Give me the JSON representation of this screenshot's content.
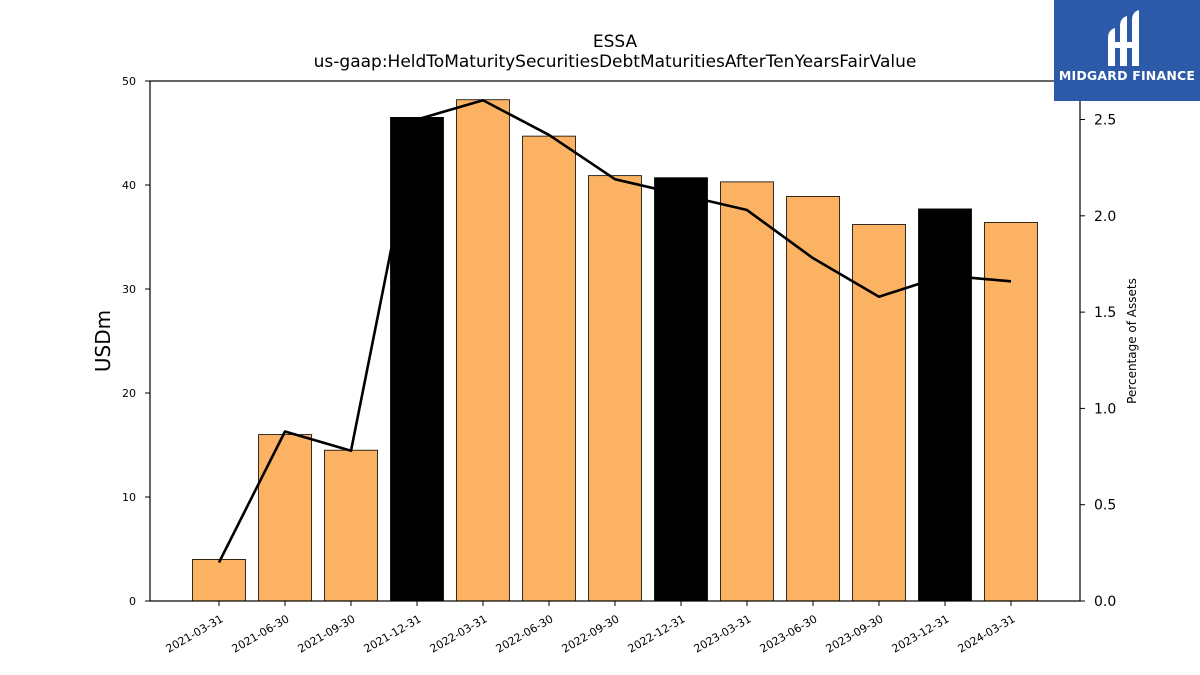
{
  "chart_data": {
    "type": "bar",
    "title": "ESSA",
    "subtitle": "us-gaap:HeldToMaturitySecuritiesDebtMaturitiesAfterTenYearsFairValue",
    "ylabel": "USDm",
    "y2label": "Percentage of Assets",
    "categories": [
      "2021-03-31",
      "2021-06-30",
      "2021-09-30",
      "2021-12-31",
      "2022-03-31",
      "2022-06-30",
      "2022-09-30",
      "2022-12-31",
      "2023-03-31",
      "2023-06-30",
      "2023-09-30",
      "2023-12-31",
      "2024-03-31"
    ],
    "series": [
      {
        "type": "bar",
        "axis": "left",
        "values": [
          4.0,
          16.0,
          14.5,
          46.5,
          48.2,
          44.7,
          40.9,
          40.7,
          40.3,
          38.9,
          36.2,
          37.7,
          36.4
        ],
        "colors": [
          "#fbb262",
          "#fbb262",
          "#fbb262",
          "#000000",
          "#fbb262",
          "#fbb262",
          "#fbb262",
          "#000000",
          "#fbb262",
          "#fbb262",
          "#fbb262",
          "#000000",
          "#fbb262"
        ]
      },
      {
        "type": "line",
        "axis": "right",
        "color": "#000000",
        "values": [
          0.2,
          0.88,
          0.78,
          2.5,
          2.6,
          2.42,
          2.19,
          2.11,
          2.03,
          1.78,
          1.58,
          1.69,
          1.66
        ]
      }
    ],
    "ylim": [
      0,
      50
    ],
    "yticks": [
      0,
      10,
      20,
      30,
      40,
      50
    ],
    "y2lim": [
      0,
      2.7
    ],
    "y2ticks": [
      0.0,
      0.5,
      1.0,
      1.5,
      2.0,
      2.5
    ],
    "y2ticklabels": [
      "0.0",
      "0.5",
      "1.0",
      "1.5",
      "2.0",
      "2.5"
    ],
    "grid": false,
    "legend": "none"
  },
  "logo": {
    "text": "MIDGARD FINANCE",
    "colors": {
      "background": "#2d5aa8",
      "foreground": "#ffffff"
    }
  }
}
